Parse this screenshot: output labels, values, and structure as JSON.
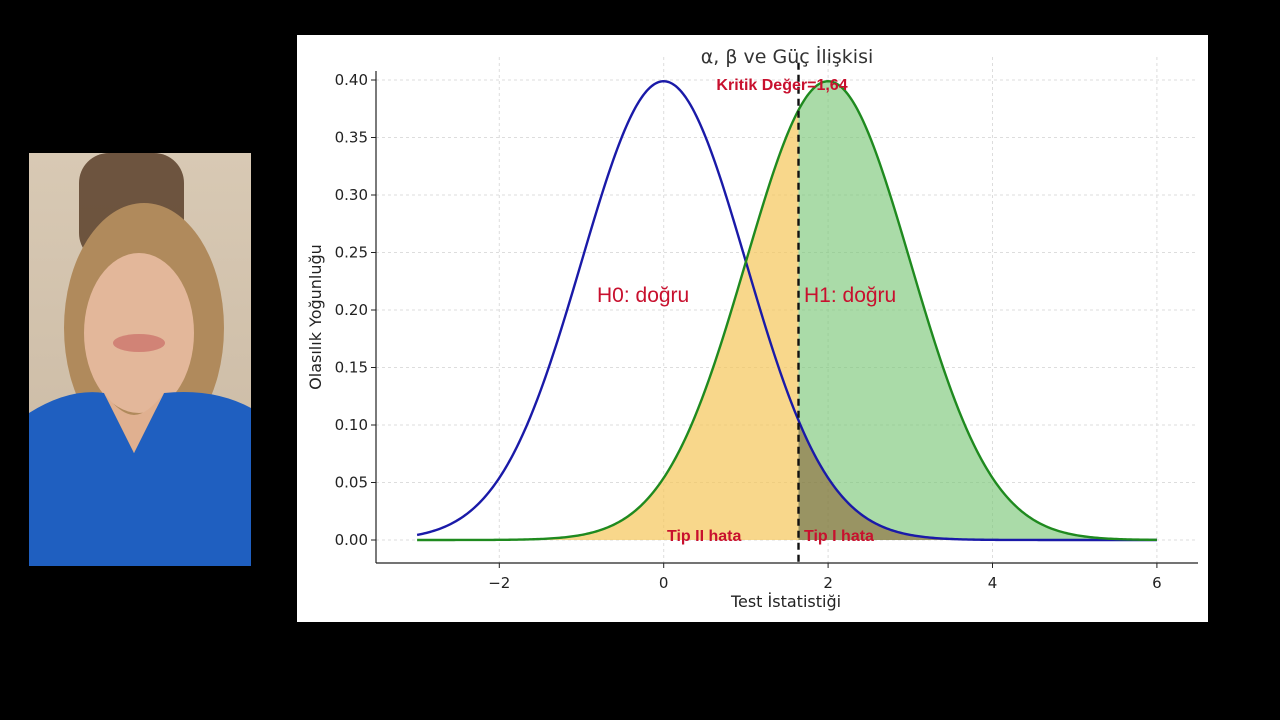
{
  "colors": {
    "background": "#000000",
    "h0_curve": "#1a1aa8",
    "h1_curve": "#1f8a1f",
    "beta_fill": "#f5c65a",
    "alpha_fill": "#4caf50",
    "power_fill": "#7cc77a",
    "critical_line": "#111111",
    "annotation_red": "#c8102e"
  },
  "webcam": {
    "description_icon": "presenter-video-icon"
  },
  "chart_data": {
    "type": "line",
    "title": "α, β ve Güç İlişkisi",
    "xlabel": "Test İstatistiği",
    "ylabel": "Olasılık Yoğunluğu",
    "xlim": [
      -3.5,
      6.5
    ],
    "ylim": [
      -0.02,
      0.42
    ],
    "grid": true,
    "x_ticks": [
      -2,
      0,
      2,
      4,
      6
    ],
    "x_tick_labels": [
      "−2",
      "0",
      "2",
      "4",
      "6"
    ],
    "y_ticks": [
      0.0,
      0.05,
      0.1,
      0.15,
      0.2,
      0.25,
      0.3,
      0.35,
      0.4
    ],
    "y_tick_labels": [
      "0.00",
      "0.05",
      "0.10",
      "0.15",
      "0.20",
      "0.25",
      "0.30",
      "0.35",
      "0.40"
    ],
    "series": [
      {
        "name": "H0: doğru",
        "distribution": "normal",
        "mean": 0,
        "sd": 1,
        "x_range": [
          -3,
          6
        ]
      },
      {
        "name": "H1: doğru",
        "distribution": "normal",
        "mean": 2,
        "sd": 1,
        "x_range": [
          -3,
          6
        ]
      }
    ],
    "critical_value": 1.64,
    "annotations": {
      "critical": "Kritik Değer=1,64",
      "type2": "Tip II hata",
      "type1": "Tip I hata"
    }
  }
}
